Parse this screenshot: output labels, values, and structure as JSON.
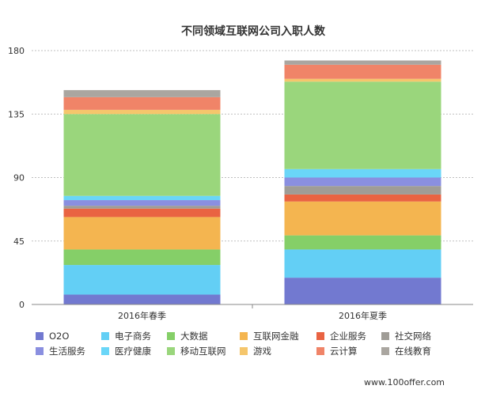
{
  "chart_data": {
    "type": "bar",
    "stacked": true,
    "title": "不同领域互联网公司入职人数",
    "categories": [
      "2016年春季",
      "2016年夏季"
    ],
    "ylim": [
      0,
      180
    ],
    "yticks": [
      0,
      45,
      90,
      135,
      180
    ],
    "grid": true,
    "legend_position": "bottom",
    "series": [
      {
        "name": "O2O",
        "color": "#7279d0",
        "values": [
          7,
          19
        ]
      },
      {
        "name": "电子商务",
        "color": "#63cff5",
        "values": [
          21,
          20
        ]
      },
      {
        "name": "大数据",
        "color": "#85cf68",
        "values": [
          11,
          10
        ]
      },
      {
        "name": "互联网金融",
        "color": "#f4b550",
        "values": [
          23,
          24
        ]
      },
      {
        "name": "企业服务",
        "color": "#e96342",
        "values": [
          6,
          5
        ]
      },
      {
        "name": "社交网络",
        "color": "#9f9c96",
        "values": [
          2,
          6
        ]
      },
      {
        "name": "生活服务",
        "color": "#8a8fe0",
        "values": [
          4,
          6
        ]
      },
      {
        "name": "医疗健康",
        "color": "#6ad6f8",
        "values": [
          3,
          6
        ]
      },
      {
        "name": "移动互联网",
        "color": "#9ad67c",
        "values": [
          58,
          62
        ]
      },
      {
        "name": "游戏",
        "color": "#f5c66c",
        "values": [
          3,
          2
        ]
      },
      {
        "name": "云计算",
        "color": "#f08468",
        "values": [
          9,
          10
        ]
      },
      {
        "name": "在线教育",
        "color": "#aaa6a0",
        "values": [
          5,
          3
        ]
      }
    ]
  },
  "watermark": "www.100offer.com"
}
